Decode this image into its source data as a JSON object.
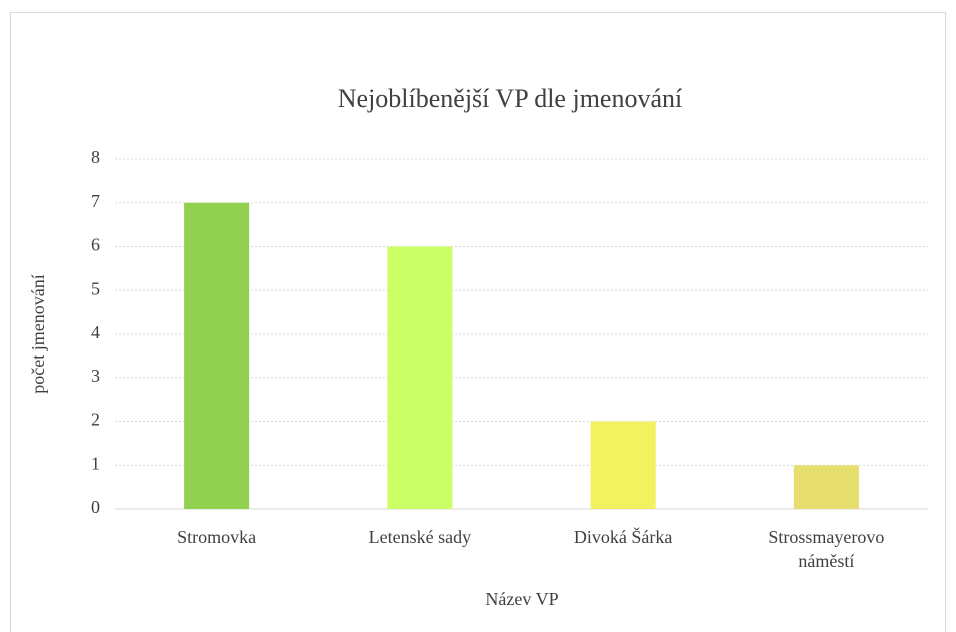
{
  "chart_data": {
    "type": "bar",
    "title": "Nejoblíbenější VP dle jmenování",
    "x_label": "Název VP",
    "y_label": "počet jmenování",
    "categories": [
      "Stromovka",
      "Letenské sady",
      "Divoká Šárka",
      "Strossmayerovo náměstí"
    ],
    "values": [
      7,
      6,
      2,
      1
    ],
    "colors": [
      "#92d050",
      "#ccff66",
      "#f2f261",
      "#e6df6e"
    ],
    "ylim": [
      0,
      8
    ],
    "yticks": [
      0,
      1,
      2,
      3,
      4,
      5,
      6,
      7,
      8
    ],
    "grid": true
  }
}
